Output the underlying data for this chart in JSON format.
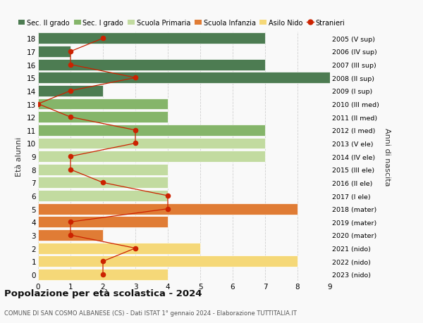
{
  "ages": [
    18,
    17,
    16,
    15,
    14,
    13,
    12,
    11,
    10,
    9,
    8,
    7,
    6,
    5,
    4,
    3,
    2,
    1,
    0
  ],
  "years": [
    "2005 (V sup)",
    "2006 (IV sup)",
    "2007 (III sup)",
    "2008 (II sup)",
    "2009 (I sup)",
    "2010 (III med)",
    "2011 (II med)",
    "2012 (I med)",
    "2013 (V ele)",
    "2014 (IV ele)",
    "2015 (III ele)",
    "2016 (II ele)",
    "2017 (I ele)",
    "2018 (mater)",
    "2019 (mater)",
    "2020 (mater)",
    "2021 (nido)",
    "2022 (nido)",
    "2023 (nido)"
  ],
  "bar_values": [
    7,
    1,
    7,
    9,
    2,
    4,
    4,
    7,
    7,
    7,
    4,
    4,
    4,
    8,
    4,
    2,
    5,
    8,
    4
  ],
  "stranieri": [
    2,
    1,
    1,
    3,
    1,
    0,
    1,
    3,
    3,
    1,
    1,
    2,
    4,
    4,
    1,
    1,
    3,
    2,
    2
  ],
  "bar_colors": [
    "#4d7c52",
    "#4d7c52",
    "#4d7c52",
    "#4d7c52",
    "#4d7c52",
    "#85b56a",
    "#85b56a",
    "#85b56a",
    "#c2dba0",
    "#c2dba0",
    "#c2dba0",
    "#c2dba0",
    "#c2dba0",
    "#e07c35",
    "#e07c35",
    "#e07c35",
    "#f5d878",
    "#f5d878",
    "#f5d878"
  ],
  "color_sec2": "#4d7c52",
  "color_sec1": "#85b56a",
  "color_primaria": "#c2dba0",
  "color_infanzia": "#e07c35",
  "color_nido": "#f5d878",
  "color_stranieri": "#cc2200",
  "title": "Popolazione per età scolastica - 2024",
  "subtitle": "COMUNE DI SAN COSMO ALBANESE (CS) - Dati ISTAT 1° gennaio 2024 - Elaborazione TUTTITALIA.IT",
  "ylabel": "Età alunni",
  "ylabel_right": "Anni di nascita",
  "xlim": [
    0,
    9
  ],
  "background_color": "#f9f9f9",
  "grid_color": "#d0d0d0"
}
